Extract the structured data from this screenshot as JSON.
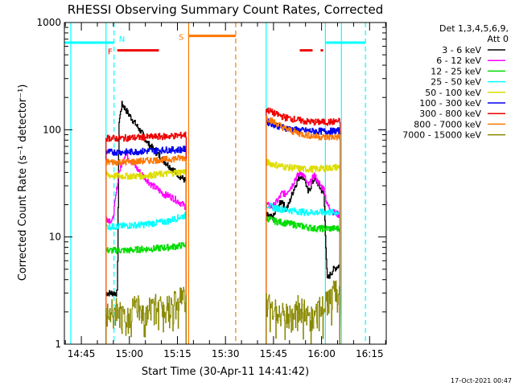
{
  "chart_data": {
    "type": "line",
    "title": "RHESSI Observing Summary Count Rates, Corrected",
    "xlabel": "Start Time (30-Apr-11 14:41:42)",
    "ylabel": "Corrected Count Rate (s⁻¹ detector⁻¹)",
    "ylog": true,
    "ylim": [
      1,
      1000
    ],
    "xlim_minutes": [
      -2.0,
      98.5
    ],
    "x_ticks": [
      {
        "m": 3.3,
        "label": "14:45"
      },
      {
        "m": 18.3,
        "label": "15:00"
      },
      {
        "m": 33.3,
        "label": "15:15"
      },
      {
        "m": 48.3,
        "label": "15:30"
      },
      {
        "m": 63.3,
        "label": "15:45"
      },
      {
        "m": 78.3,
        "label": "16:00"
      },
      {
        "m": 93.3,
        "label": "16:15"
      }
    ],
    "y_ticks": [
      {
        "v": 1,
        "label": "1"
      },
      {
        "v": 10,
        "label": "10"
      },
      {
        "v": 100,
        "label": "100"
      },
      {
        "v": 1000,
        "label": "1000"
      }
    ],
    "legend": {
      "header1": "Det 1,3,4,5,6,9,",
      "header2": "Att 0",
      "placement": "right"
    },
    "timestamp": "17-Oct-2021 00:47",
    "series": [
      {
        "name": "3 - 6 keV",
        "color": "#000000",
        "a": [
          [
            11.0,
            3.0
          ],
          [
            13.0,
            3.0
          ],
          [
            14.5,
            3.0
          ],
          [
            15.0,
            120
          ],
          [
            16.0,
            175
          ],
          [
            18.0,
            140
          ],
          [
            20.0,
            115
          ],
          [
            22.0,
            95
          ],
          [
            24.0,
            75
          ],
          [
            26.0,
            65
          ],
          [
            28.0,
            55
          ],
          [
            30.0,
            48
          ],
          [
            32.0,
            42
          ],
          [
            34.0,
            37
          ],
          [
            36.0,
            33
          ]
        ],
        "b": [
          [
            61.0,
            16
          ],
          [
            63.0,
            15
          ],
          [
            65.0,
            20
          ],
          [
            66.0,
            22
          ],
          [
            67.0,
            18
          ],
          [
            68.0,
            20
          ],
          [
            69.0,
            25
          ],
          [
            70.0,
            30
          ],
          [
            71.0,
            35
          ],
          [
            72.0,
            38
          ],
          [
            73.0,
            35
          ],
          [
            74.0,
            26
          ],
          [
            75.0,
            30
          ],
          [
            76.0,
            35
          ],
          [
            77.0,
            32
          ],
          [
            78.0,
            28
          ],
          [
            79.0,
            25
          ],
          [
            80.0,
            4
          ],
          [
            82.0,
            5
          ],
          [
            84.0,
            5.5
          ]
        ]
      },
      {
        "name": "6 - 12 keV",
        "color": "#ff00ff",
        "a": [
          [
            11.0,
            15
          ],
          [
            13.0,
            14
          ],
          [
            15.0,
            40
          ],
          [
            17.0,
            60
          ],
          [
            19.0,
            50
          ],
          [
            21.0,
            42
          ],
          [
            23.0,
            36
          ],
          [
            25.0,
            31
          ],
          [
            27.0,
            28
          ],
          [
            29.0,
            25
          ],
          [
            31.0,
            24
          ],
          [
            33.0,
            22
          ],
          [
            35.0,
            20
          ],
          [
            36.0,
            19
          ]
        ],
        "b": [
          [
            61.0,
            20
          ],
          [
            63.0,
            19
          ],
          [
            65.0,
            23
          ],
          [
            66.0,
            26
          ],
          [
            67.0,
            25
          ],
          [
            68.0,
            28
          ],
          [
            69.0,
            30
          ],
          [
            70.0,
            35
          ],
          [
            71.0,
            38
          ],
          [
            72.0,
            40
          ],
          [
            73.0,
            36
          ],
          [
            74.0,
            30
          ],
          [
            75.0,
            33
          ],
          [
            76.0,
            38
          ],
          [
            77.0,
            33
          ],
          [
            78.0,
            30
          ],
          [
            79.0,
            28
          ],
          [
            80.0,
            20
          ],
          [
            82.0,
            17
          ],
          [
            84.0,
            16
          ]
        ]
      },
      {
        "name": "12 - 25 keV",
        "color": "#00dd00",
        "a": [
          [
            11.0,
            7.5
          ],
          [
            14.0,
            7.5
          ],
          [
            18.0,
            7.5
          ],
          [
            22.0,
            7.7
          ],
          [
            26.0,
            7.8
          ],
          [
            30.0,
            8.0
          ],
          [
            33.0,
            8.2
          ],
          [
            36.0,
            8.5
          ]
        ],
        "b": [
          [
            61.0,
            15
          ],
          [
            64.0,
            14
          ],
          [
            67.0,
            13.5
          ],
          [
            70.0,
            13
          ],
          [
            73.0,
            12.5
          ],
          [
            76.0,
            12
          ],
          [
            80.0,
            12
          ],
          [
            84.0,
            12
          ]
        ]
      },
      {
        "name": "25 - 50 keV",
        "color": "#00ffff",
        "a": [
          [
            11.0,
            12.5
          ],
          [
            14.0,
            12.5
          ],
          [
            18.0,
            12.8
          ],
          [
            22.0,
            13.0
          ],
          [
            26.0,
            13.5
          ],
          [
            30.0,
            14
          ],
          [
            33.0,
            15
          ],
          [
            36.0,
            16
          ]
        ],
        "b": [
          [
            61.0,
            20
          ],
          [
            64.0,
            18.5
          ],
          [
            67.0,
            18
          ],
          [
            70.0,
            17.5
          ],
          [
            73.0,
            17
          ],
          [
            76.0,
            17
          ],
          [
            80.0,
            17
          ],
          [
            84.0,
            17
          ]
        ]
      },
      {
        "name": "50 - 100 keV",
        "color": "#dddd00",
        "a": [
          [
            11.0,
            38
          ],
          [
            14.0,
            37
          ],
          [
            18.0,
            37
          ],
          [
            22.0,
            37
          ],
          [
            26.0,
            38
          ],
          [
            30.0,
            39
          ],
          [
            33.0,
            40
          ],
          [
            36.0,
            41
          ]
        ],
        "b": [
          [
            61.0,
            50
          ],
          [
            64.0,
            47
          ],
          [
            67.0,
            45
          ],
          [
            70.0,
            44
          ],
          [
            73.0,
            43
          ],
          [
            76.0,
            43
          ],
          [
            80.0,
            44
          ],
          [
            84.0,
            45
          ]
        ]
      },
      {
        "name": "100 - 300 keV",
        "color": "#0000ee",
        "a": [
          [
            11.0,
            62
          ],
          [
            14.0,
            62
          ],
          [
            18.0,
            62
          ],
          [
            22.0,
            63
          ],
          [
            26.0,
            64
          ],
          [
            30.0,
            65
          ],
          [
            33.0,
            65
          ],
          [
            36.0,
            66
          ]
        ],
        "b": [
          [
            61.0,
            120
          ],
          [
            64.0,
            110
          ],
          [
            67.0,
            104
          ],
          [
            70.0,
            100
          ],
          [
            73.0,
            98
          ],
          [
            76.0,
            97
          ],
          [
            80.0,
            97
          ],
          [
            84.0,
            98
          ]
        ]
      },
      {
        "name": "300 - 800 keV",
        "color": "#ee0000",
        "a": [
          [
            11.0,
            84
          ],
          [
            14.0,
            83
          ],
          [
            18.0,
            84
          ],
          [
            22.0,
            85
          ],
          [
            26.0,
            86
          ],
          [
            30.0,
            87
          ],
          [
            33.0,
            88
          ],
          [
            36.0,
            90
          ]
        ],
        "b": [
          [
            61.0,
            155
          ],
          [
            64.0,
            140
          ],
          [
            67.0,
            130
          ],
          [
            70.0,
            125
          ],
          [
            73.0,
            120
          ],
          [
            76.0,
            118
          ],
          [
            80.0,
            118
          ],
          [
            84.0,
            120
          ]
        ]
      },
      {
        "name": "800 - 7000 keV",
        "color": "#ff7700",
        "a": [
          [
            11.0,
            50
          ],
          [
            14.0,
            50
          ],
          [
            18.0,
            50
          ],
          [
            22.0,
            51
          ],
          [
            26.0,
            52
          ],
          [
            30.0,
            53
          ],
          [
            33.0,
            54
          ],
          [
            36.0,
            55
          ]
        ],
        "b": [
          [
            61.0,
            130
          ],
          [
            64.0,
            115
          ],
          [
            67.0,
            102
          ],
          [
            70.0,
            95
          ],
          [
            73.0,
            90
          ],
          [
            76.0,
            87
          ],
          [
            80.0,
            85
          ],
          [
            84.0,
            86
          ]
        ]
      },
      {
        "name": "7000 - 15000 keV",
        "color": "#888800",
        "a": [
          [
            11.0,
            1.8
          ],
          [
            14.0,
            2.2
          ],
          [
            17.0,
            1.6
          ],
          [
            20.0,
            2.5
          ],
          [
            23.0,
            1.9
          ],
          [
            26.0,
            2.8
          ],
          [
            29.0,
            2.2
          ],
          [
            32.0,
            2.6
          ],
          [
            35.0,
            2.9
          ],
          [
            36.0,
            2.5
          ]
        ],
        "b": [
          [
            61.0,
            2.5
          ],
          [
            64.0,
            2.2
          ],
          [
            67.0,
            1.8
          ],
          [
            70.0,
            2.3
          ],
          [
            73.0,
            2.0
          ],
          [
            76.0,
            1.9
          ],
          [
            79.0,
            2.3
          ],
          [
            82.0,
            3.0
          ],
          [
            84.0,
            3.2
          ]
        ]
      }
    ],
    "flags": [
      {
        "label": "N",
        "color": "#00ffff",
        "level": 650,
        "segments": [
          [
            -2.0,
            13.5
          ],
          [
            79.5,
            92.0
          ]
        ]
      },
      {
        "label": "F",
        "color": "#ee0000",
        "level": 550,
        "segments": [
          [
            14.5,
            27.5
          ],
          [
            71.5,
            75.5
          ],
          [
            78.0,
            78.8
          ]
        ]
      },
      {
        "label": "S",
        "color": "#ff7700",
        "level": 750,
        "segments": [
          [
            36.8,
            51.5
          ]
        ]
      }
    ],
    "vlines": [
      {
        "m": 0.0,
        "color": "#00ffff",
        "dash": false
      },
      {
        "m": 11.0,
        "color": "#00ffff",
        "dash": false
      },
      {
        "m": 13.5,
        "color": "#00ffff",
        "dash": true
      },
      {
        "m": 36.8,
        "color": "#ff7700",
        "dash": false
      },
      {
        "m": 51.5,
        "color": "#ff7700",
        "dash": true
      },
      {
        "m": 61.0,
        "color": "#00ffff",
        "dash": false
      },
      {
        "m": 79.5,
        "color": "#00ffff",
        "dash": false
      },
      {
        "m": 84.5,
        "color": "#00ffff",
        "dash": false
      },
      {
        "m": 92.0,
        "color": "#00ffff",
        "dash": true
      }
    ]
  }
}
